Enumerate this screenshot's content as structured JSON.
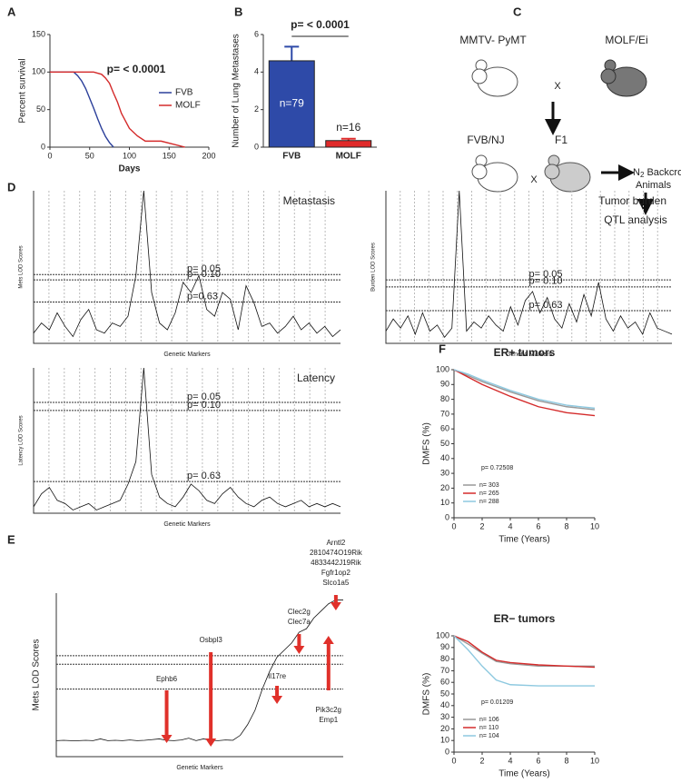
{
  "chart_data": [
    {
      "type": "line",
      "panel": "A",
      "annotation": "p= < 0.0001",
      "xlabel": "Days",
      "ylabel": "Percent survival",
      "xlim": [
        0,
        200
      ],
      "xticks": [
        0,
        50,
        100,
        150,
        200
      ],
      "ylim": [
        0,
        150
      ],
      "yticks": [
        0,
        50,
        100,
        150
      ],
      "series": [
        {
          "name": "FVB",
          "color": "#2b3f9a",
          "x": [
            0,
            30,
            35,
            40,
            45,
            50,
            55,
            60,
            65,
            70,
            75,
            80
          ],
          "values": [
            100,
            100,
            95,
            88,
            78,
            65,
            52,
            38,
            25,
            14,
            6,
            0
          ]
        },
        {
          "name": "MOLF",
          "color": "#d42a2a",
          "x": [
            0,
            55,
            65,
            70,
            75,
            80,
            85,
            90,
            95,
            100,
            110,
            120,
            140,
            170
          ],
          "values": [
            100,
            100,
            97,
            92,
            85,
            72,
            60,
            45,
            35,
            25,
            15,
            8,
            8,
            0
          ]
        }
      ]
    },
    {
      "type": "bar",
      "panel": "B",
      "annotation": "p= < 0.0001",
      "ylabel": "Number of Lung Metastases",
      "categories": [
        "FVB",
        "MOLF"
      ],
      "values": [
        4.6,
        0.35
      ],
      "errors": [
        0.75,
        0.1
      ],
      "colors": [
        "#2e4aa8",
        "#e02a2a"
      ],
      "annotations": [
        "n=79",
        "n=16"
      ],
      "ylim": [
        0,
        6
      ],
      "yticks": [
        0,
        2,
        4,
        6
      ]
    },
    {
      "type": "lod",
      "panel": "D",
      "title": "Metastasis",
      "xlabel": "Genetic Markers",
      "ylabel": "Mets LOD Scores",
      "ylim": [
        0,
        4.5
      ],
      "values": [
        0.3,
        0.6,
        0.4,
        0.9,
        0.5,
        0.2,
        0.7,
        1.0,
        0.4,
        0.3,
        0.6,
        0.5,
        0.8,
        2.0,
        4.5,
        1.5,
        0.6,
        0.4,
        0.9,
        1.8,
        1.5,
        2.0,
        1.0,
        0.8,
        1.5,
        1.3,
        0.4,
        1.7,
        1.2,
        0.5,
        0.6,
        0.3,
        0.5,
        0.8,
        0.4,
        0.6,
        0.3,
        0.5,
        0.2,
        0.4
      ],
      "thresholds": [
        {
          "value": 2.03,
          "label": "p= 0.05"
        },
        {
          "value": 1.87,
          "label": "p= 0.10"
        },
        {
          "value": 1.22,
          "label": "p=0.63"
        }
      ]
    },
    {
      "type": "lod",
      "title": "Tumor burden",
      "xlabel": "Genetic Markers",
      "ylabel": "Burden LOD Scores",
      "ylim": [
        0,
        5
      ],
      "values": [
        0.4,
        0.8,
        0.5,
        0.9,
        0.3,
        1.0,
        0.4,
        0.6,
        0.2,
        0.5,
        5.0,
        0.4,
        0.7,
        0.5,
        0.9,
        0.6,
        0.4,
        1.2,
        0.6,
        1.4,
        1.7,
        1.0,
        1.5,
        0.8,
        0.5,
        1.3,
        0.7,
        1.6,
        0.9,
        2.0,
        0.8,
        0.4,
        0.9,
        0.5,
        0.7,
        0.3,
        1.0,
        0.5,
        0.4,
        0.3
      ],
      "thresholds": [
        {
          "value": 2.08,
          "label": "p= 0.05"
        },
        {
          "value": 1.85,
          "label": "p= 0.10"
        },
        {
          "value": 1.07,
          "label": "p= 0.63"
        }
      ]
    },
    {
      "type": "lod",
      "title": "Latency",
      "xlabel": "Genetic Markers",
      "ylabel": "Latency LOD Scores",
      "ylim": [
        0,
        4.5
      ],
      "values": [
        0.2,
        0.6,
        0.8,
        0.4,
        0.3,
        0.1,
        0.2,
        0.3,
        0.1,
        0.2,
        0.3,
        0.4,
        0.9,
        1.6,
        4.5,
        1.2,
        0.5,
        0.3,
        0.2,
        0.5,
        0.9,
        0.7,
        0.4,
        0.3,
        0.6,
        0.8,
        0.5,
        0.3,
        0.2,
        0.4,
        0.5,
        0.3,
        0.2,
        0.3,
        0.4,
        0.2,
        0.3,
        0.2,
        0.3,
        0.2
      ],
      "thresholds": [
        {
          "value": 3.43,
          "label": "p= 0.05"
        },
        {
          "value": 3.18,
          "label": "p= 0.10"
        },
        {
          "value": 0.98,
          "label": "p= 0.63"
        }
      ]
    },
    {
      "type": "lod",
      "panel": "E",
      "xlabel": "Genetic Markers",
      "ylabel": "Mets LOD Scores",
      "ylim": [
        0,
        4.6
      ],
      "values": [
        0.45,
        0.46,
        0.45,
        0.45,
        0.46,
        0.45,
        0.5,
        0.45,
        0.46,
        0.45,
        0.47,
        0.45,
        0.46,
        0.48,
        0.5,
        0.46,
        0.45,
        0.47,
        0.52,
        0.45,
        0.5,
        0.46,
        0.45,
        0.47,
        0.46,
        0.6,
        0.9,
        1.3,
        1.9,
        2.4,
        2.8,
        3.0,
        3.2,
        3.5,
        3.6,
        3.9,
        4.1,
        4.3,
        4.41,
        4.41
      ],
      "thresholds": [
        {
          "value": 2.84
        },
        {
          "value": 2.6
        },
        {
          "value": 1.9
        }
      ],
      "genes": [
        {
          "lines": [
            "Ephb6"
          ],
          "x": 15
        },
        {
          "lines": [
            "Osbpl3"
          ],
          "x": 21
        },
        {
          "lines": [
            "Il17re"
          ],
          "x": 30
        },
        {
          "lines": [
            "Clec2g",
            "Clec7a"
          ],
          "x": 33
        },
        {
          "lines": [
            "Pik3c2g",
            "Emp1"
          ],
          "x": 37,
          "arrow": "up"
        },
        {
          "lines": [
            "Arntl2",
            "2810474O19Rik",
            "4833442J19Rik",
            "Fgfr1op2",
            "Slco1a5"
          ],
          "x": 38
        }
      ]
    },
    {
      "type": "line",
      "panel": "F",
      "title": "ER+ tumors",
      "annotation": "p= 0.72508",
      "xlabel": "Time (Years)",
      "ylabel": "DMFS (%)",
      "xlim": [
        0,
        10
      ],
      "xticks": [
        0,
        2,
        4,
        6,
        8,
        10
      ],
      "ylim": [
        0,
        100
      ],
      "yticks": [
        0,
        10,
        20,
        30,
        40,
        50,
        60,
        70,
        80,
        90,
        100
      ],
      "series": [
        {
          "name": "n= 303",
          "color": "#999999",
          "x": [
            0,
            1,
            2,
            4,
            6,
            8,
            10
          ],
          "values": [
            100,
            96,
            92,
            85,
            79,
            75,
            73
          ]
        },
        {
          "name": "n= 265",
          "color": "#d42a2a",
          "x": [
            0,
            1,
            2,
            4,
            6,
            8,
            10
          ],
          "values": [
            100,
            95,
            90,
            82,
            75,
            71,
            69
          ]
        },
        {
          "name": "n= 288",
          "color": "#8ec9e0",
          "x": [
            0,
            1,
            2,
            4,
            6,
            8,
            10
          ],
          "values": [
            100,
            97,
            93,
            86,
            80,
            76,
            74
          ]
        }
      ]
    },
    {
      "type": "line",
      "title": "ER− tumors",
      "annotation": "p= 0.01209",
      "xlabel": "Time (Years)",
      "ylabel": "DMFS (%)",
      "xlim": [
        0,
        10
      ],
      "xticks": [
        0,
        2,
        4,
        6,
        8,
        10
      ],
      "ylim": [
        0,
        100
      ],
      "yticks": [
        0,
        10,
        20,
        30,
        40,
        50,
        60,
        70,
        80,
        90,
        100
      ],
      "series": [
        {
          "name": "n= 106",
          "color": "#999999",
          "x": [
            0,
            1,
            2,
            3,
            4,
            6,
            10
          ],
          "values": [
            100,
            93,
            85,
            78,
            76,
            74,
            74
          ]
        },
        {
          "name": "n= 110",
          "color": "#d42a2a",
          "x": [
            0,
            1,
            2,
            3,
            4,
            6,
            10
          ],
          "values": [
            100,
            95,
            86,
            79,
            77,
            75,
            73
          ]
        },
        {
          "name": "n= 104",
          "color": "#8ec9e0",
          "x": [
            0,
            1,
            2,
            3,
            4,
            6,
            10
          ],
          "values": [
            100,
            88,
            74,
            62,
            58,
            57,
            57
          ]
        }
      ]
    }
  ],
  "diagram": {
    "panel": "C",
    "top_left": "MMTV- PyMT",
    "top_right": "MOLF/Ei",
    "cross_1": "X",
    "mid_left": "FVB/NJ",
    "mid_right": "F1",
    "cross_2": "X",
    "backcross": "N",
    "backcross_sub": "2",
    "backcross_rest": " Backcross",
    "animals": "Animals",
    "qtl": "QTL analysis"
  }
}
